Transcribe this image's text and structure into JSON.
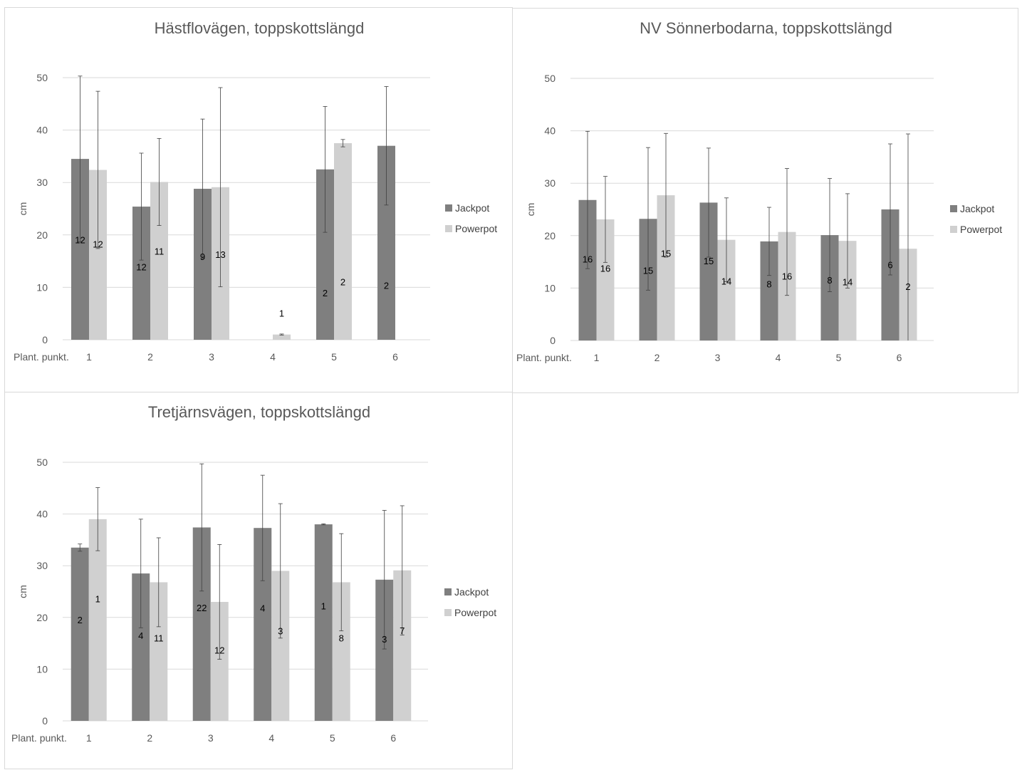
{
  "colors": {
    "jackpot": "#7f7f7f",
    "powerpot": "#d0d0d0",
    "grid": "#d9d9d9",
    "error_bar": "#404040"
  },
  "legend": [
    "Jackpot",
    "Powerpot"
  ],
  "chart_data": [
    {
      "type": "bar",
      "title": "Hästflovägen, toppskottslängd",
      "ylabel": "cm",
      "xlabel": "Plant. punkt.",
      "categories": [
        "1",
        "2",
        "3",
        "4",
        "5",
        "6"
      ],
      "yticks": [
        "0",
        "10",
        "20",
        "30",
        "40",
        "50"
      ],
      "ylim": [
        0,
        50
      ],
      "grid": true,
      "legend_position": "right",
      "series": [
        {
          "name": "Jackpot",
          "values": [
            34.5,
            25.4,
            28.8,
            null,
            32.5,
            37.0
          ],
          "error": [
            15.8,
            10.2,
            13.3,
            null,
            12.0,
            11.3
          ],
          "n_labels": [
            "12",
            "12",
            "9",
            "",
            "2",
            "2"
          ]
        },
        {
          "name": "Powerpot",
          "values": [
            32.4,
            30.1,
            29.1,
            1.0,
            37.5,
            null
          ],
          "error": [
            15.0,
            8.3,
            19.0,
            0.1,
            0.7,
            null
          ],
          "n_labels": [
            "12",
            "11",
            "13",
            "1",
            "2",
            ""
          ]
        }
      ]
    },
    {
      "type": "bar",
      "title": "NV Sönnerbodarna, toppskottslängd",
      "ylabel": "cm",
      "xlabel": "Plant. punkt.",
      "categories": [
        "1",
        "2",
        "3",
        "4",
        "5",
        "6"
      ],
      "yticks": [
        "0",
        "10",
        "20",
        "30",
        "40",
        "50"
      ],
      "ylim": [
        0,
        50
      ],
      "grid": true,
      "legend_position": "right",
      "series": [
        {
          "name": "Jackpot",
          "values": [
            26.8,
            23.2,
            26.3,
            18.9,
            20.1,
            25.0
          ],
          "error": [
            13.1,
            13.6,
            10.4,
            6.5,
            10.8,
            12.5
          ],
          "n_labels": [
            "16",
            "15",
            "15",
            "8",
            "8",
            "6"
          ]
        },
        {
          "name": "Powerpot",
          "values": [
            23.1,
            27.7,
            19.2,
            20.7,
            19.0,
            17.5
          ],
          "error": [
            8.2,
            11.8,
            8.0,
            12.1,
            9.0,
            21.9
          ],
          "n_labels": [
            "16",
            "15",
            "14",
            "16",
            "14",
            "2"
          ]
        }
      ]
    },
    {
      "type": "bar",
      "title": "Tretjärnsvägen, toppskottslängd",
      "ylabel": "cm",
      "xlabel": "Plant. punkt.",
      "categories": [
        "1",
        "2",
        "3",
        "4",
        "5",
        "6"
      ],
      "yticks": [
        "0",
        "10",
        "20",
        "30",
        "40",
        "50"
      ],
      "ylim": [
        0,
        50
      ],
      "grid": true,
      "legend_position": "right",
      "series": [
        {
          "name": "Jackpot",
          "values": [
            33.5,
            28.5,
            37.4,
            37.3,
            38.0,
            27.3
          ],
          "error": [
            0.7,
            10.5,
            12.3,
            10.2,
            0.1,
            13.4
          ],
          "n_labels": [
            "2",
            "4",
            "22",
            "4",
            "1",
            "3"
          ]
        },
        {
          "name": "Powerpot",
          "values": [
            39.0,
            26.8,
            23.0,
            29.0,
            26.8,
            29.1
          ],
          "error": [
            6.1,
            8.6,
            11.1,
            13.0,
            9.4,
            12.5
          ],
          "n_labels": [
            "1",
            "11",
            "12",
            "3",
            "8",
            "7"
          ]
        }
      ]
    }
  ]
}
